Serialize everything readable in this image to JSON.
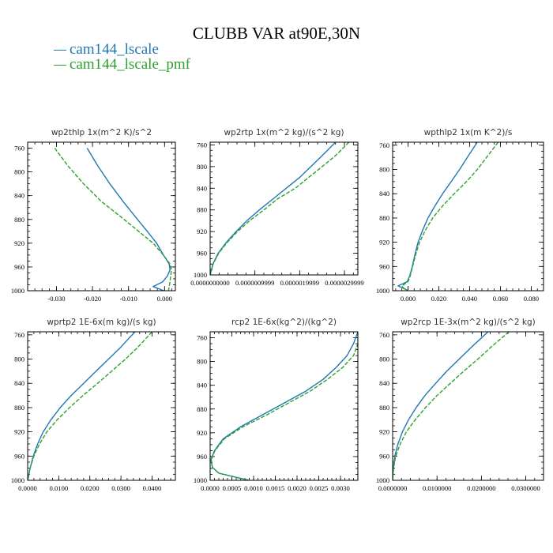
{
  "title": "CLUBB VAR at90E,30N",
  "legend": [
    {
      "label": "cam144_lscale",
      "color": "#1f77b4",
      "style": "solid"
    },
    {
      "label": "cam144_lscale_pmf",
      "color": "#2ca02c",
      "style": "dashed"
    }
  ],
  "chart_data": [
    {
      "type": "line",
      "title": "wp2thlp   1x(m^2 K)/s^2",
      "xlim": [
        -0.038,
        0.003
      ],
      "ylim": [
        1000,
        750
      ],
      "xticks": [
        "-0.030",
        "-0.020",
        "-0.010",
        "0.000"
      ],
      "xtick_values": [
        -0.03,
        -0.02,
        -0.01,
        0.0
      ],
      "yticks": [
        "760",
        "800",
        "840",
        "880",
        "920",
        "960",
        "1000"
      ],
      "ytick_values": [
        760,
        800,
        840,
        880,
        920,
        960,
        1000
      ],
      "y": [
        760,
        790,
        820,
        850,
        880,
        900,
        920,
        940,
        955,
        965,
        975,
        985,
        993,
        1000
      ],
      "series": [
        {
          "name": "cam144_lscale",
          "x": [
            -0.0215,
            -0.0185,
            -0.0152,
            -0.0115,
            -0.0075,
            -0.0048,
            -0.0022,
            -0.0003,
            0.0013,
            0.0015,
            0.0008,
            -0.0005,
            -0.0032,
            -0.0002
          ]
        },
        {
          "name": "cam144_lscale_pmf",
          "x": [
            -0.0305,
            -0.0268,
            -0.0225,
            -0.0175,
            -0.0112,
            -0.0072,
            -0.0032,
            -0.0003,
            0.0015,
            0.0019,
            0.0017,
            0.0015,
            0.0013,
            0.0011
          ]
        }
      ]
    },
    {
      "type": "line",
      "title": "wp2rtp   1x(m^2 kg)/(s^2 kg)",
      "xlim": [
        0.0,
        3.3e-06
      ],
      "ylim": [
        1000,
        755
      ],
      "xticks": [
        "0.0000000000",
        "0.0000009999",
        "0.0000019999",
        "0.0000029999"
      ],
      "xtick_values": [
        0.0,
        1e-06,
        2e-06,
        3e-06
      ],
      "yticks": [
        "760",
        "800",
        "840",
        "880",
        "920",
        "960",
        "1000"
      ],
      "ytick_values": [
        760,
        800,
        840,
        880,
        920,
        960,
        1000
      ],
      "y": [
        755,
        780,
        800,
        820,
        840,
        860,
        880,
        900,
        920,
        940,
        960,
        980,
        995,
        1000
      ],
      "series": [
        {
          "name": "cam144_lscale",
          "x": [
            2.8e-06,
            2.5e-06,
            2.25e-06,
            2e-06,
            1.7e-06,
            1.4e-06,
            1.1e-06,
            8.2e-07,
            5.8e-07,
            3.6e-07,
            1.8e-07,
            6e-08,
            1.5e-08,
            0.0
          ]
        },
        {
          "name": "cam144_lscale_pmf",
          "x": [
            3.1e-06,
            2.8e-06,
            2.5e-06,
            2.2e-06,
            1.9e-06,
            1.5e-06,
            1.2e-06,
            8.8e-07,
            6.1e-07,
            3.8e-07,
            1.9e-07,
            6.5e-08,
            1.5e-08,
            0.0
          ]
        }
      ]
    },
    {
      "type": "line",
      "title": "wpthlp2   1x(m K^2)/s",
      "xlim": [
        -0.01,
        0.088
      ],
      "ylim": [
        1000,
        755
      ],
      "xticks": [
        "0.000",
        "0.020",
        "0.040",
        "0.060",
        "0.080"
      ],
      "xtick_values": [
        0.0,
        0.02,
        0.04,
        0.06,
        0.08
      ],
      "yticks": [
        "760",
        "800",
        "840",
        "880",
        "920",
        "960",
        "1000"
      ],
      "ytick_values": [
        760,
        800,
        840,
        880,
        920,
        960,
        1000
      ],
      "y": [
        755,
        780,
        800,
        820,
        840,
        860,
        880,
        900,
        920,
        940,
        960,
        975,
        985,
        992,
        997,
        1000
      ],
      "series": [
        {
          "name": "cam144_lscale",
          "x": [
            0.045,
            0.0385,
            0.0335,
            0.028,
            0.0225,
            0.0175,
            0.013,
            0.0095,
            0.0065,
            0.0045,
            0.0028,
            0.0012,
            -0.0005,
            -0.0065,
            -0.002,
            0.0
          ]
        },
        {
          "name": "cam144_lscale_pmf",
          "x": [
            0.0585,
            0.051,
            0.045,
            0.038,
            0.03,
            0.0225,
            0.016,
            0.0113,
            0.0075,
            0.005,
            0.003,
            0.0015,
            0.0,
            -0.004,
            -0.0025,
            0.0
          ]
        }
      ]
    },
    {
      "type": "line",
      "title": "wprtp2   1E-6x(m kg)/(s kg)",
      "xlim": [
        0.0,
        0.0475
      ],
      "ylim": [
        1000,
        755
      ],
      "xticks": [
        "0.0000",
        "0.0100",
        "0.0200",
        "0.0300",
        "0.0400"
      ],
      "xtick_values": [
        0.0,
        0.01,
        0.02,
        0.03,
        0.04
      ],
      "yticks": [
        "760",
        "800",
        "840",
        "880",
        "920",
        "960",
        "1000"
      ],
      "ytick_values": [
        760,
        800,
        840,
        880,
        920,
        960,
        1000
      ],
      "y": [
        755,
        780,
        800,
        820,
        840,
        860,
        880,
        900,
        920,
        940,
        960,
        980,
        995,
        1000
      ],
      "series": [
        {
          "name": "cam144_lscale",
          "x": [
            0.0345,
            0.03,
            0.026,
            0.022,
            0.018,
            0.014,
            0.0105,
            0.0075,
            0.005,
            0.0032,
            0.0018,
            0.0008,
            0.0002,
            0.0
          ]
        },
        {
          "name": "cam144_lscale_pmf",
          "x": [
            0.04,
            0.0355,
            0.0315,
            0.027,
            0.0225,
            0.0178,
            0.0135,
            0.0095,
            0.0062,
            0.0038,
            0.002,
            0.0008,
            0.0002,
            0.0
          ]
        }
      ]
    },
    {
      "type": "line",
      "title": "rcp2   1E-6x(kg^2)/(kg^2)",
      "xlim": [
        0.0,
        0.0034
      ],
      "ylim": [
        1000,
        750
      ],
      "xticks": [
        "0.0000",
        "0.0005",
        "0.0010",
        "0.0015",
        "0.0020",
        "0.0025",
        "0.0030"
      ],
      "xtick_values": [
        0.0,
        0.0005,
        0.001,
        0.0015,
        0.002,
        0.0025,
        0.003
      ],
      "yticks": [
        "760",
        "800",
        "840",
        "880",
        "920",
        "960",
        "1000"
      ],
      "ytick_values": [
        760,
        800,
        840,
        880,
        920,
        960,
        1000
      ],
      "y": [
        750,
        770,
        790,
        810,
        830,
        850,
        870,
        890,
        910,
        930,
        950,
        965,
        978,
        988,
        995,
        1000
      ],
      "series": [
        {
          "name": "cam144_lscale",
          "x": [
            0.0034,
            0.0033,
            0.00315,
            0.0029,
            0.0026,
            0.0022,
            0.0017,
            0.0012,
            0.0007,
            0.0003,
            0.0001,
            2e-05,
            5e-05,
            0.0002,
            0.0006,
            0.0009
          ]
        },
        {
          "name": "cam144_lscale_pmf",
          "x": [
            0.0034,
            0.0034,
            0.0033,
            0.00305,
            0.0027,
            0.0023,
            0.0018,
            0.0013,
            0.00075,
            0.00033,
            0.00011,
            3e-05,
            5e-05,
            0.0002,
            0.0006,
            0.0009
          ]
        }
      ]
    },
    {
      "type": "line",
      "title": "wp2rcp   1E-3x(m^2 kg)/(s^2 kg)",
      "xlim": [
        0.0,
        0.034
      ],
      "ylim": [
        1000,
        755
      ],
      "xticks": [
        "0.0000000",
        "0.0100000",
        "0.0200000",
        "0.0300000"
      ],
      "xtick_values": [
        0.0,
        0.01,
        0.02,
        0.03
      ],
      "yticks": [
        "760",
        "800",
        "840",
        "880",
        "920",
        "960",
        "1000"
      ],
      "ytick_values": [
        760,
        800,
        840,
        880,
        920,
        960,
        1000
      ],
      "y": [
        755,
        780,
        800,
        820,
        840,
        860,
        880,
        900,
        920,
        940,
        960,
        980,
        995,
        1000
      ],
      "series": [
        {
          "name": "cam144_lscale",
          "x": [
            0.0215,
            0.0178,
            0.015,
            0.0122,
            0.0097,
            0.0073,
            0.0053,
            0.0036,
            0.0022,
            0.0012,
            0.0005,
            0.00015,
            3e-05,
            0.0
          ]
        },
        {
          "name": "cam144_lscale_pmf",
          "x": [
            0.0262,
            0.0222,
            0.0192,
            0.016,
            0.013,
            0.01,
            0.0074,
            0.0051,
            0.0031,
            0.0017,
            0.0007,
            0.0002,
            4e-05,
            0.0
          ]
        }
      ]
    }
  ]
}
